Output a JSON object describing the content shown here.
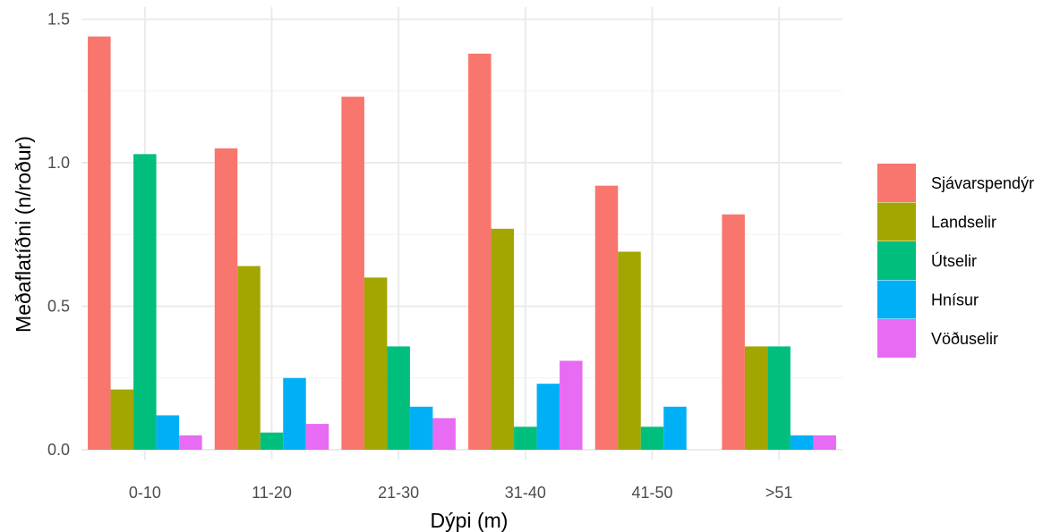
{
  "chart_data": {
    "type": "bar",
    "xlabel": "Dýpi (m)",
    "ylabel": "Meðaflatíðni (n/roður)",
    "ylim": [
      0,
      1.5
    ],
    "yticks": [
      "0.0",
      "0.5",
      "1.0",
      "1.5"
    ],
    "categories": [
      "0-10",
      "11-20",
      "21-30",
      "31-40",
      "41-50",
      ">51"
    ],
    "grid": true,
    "legend_position": "right",
    "series": [
      {
        "name": "Sjávarspendýr",
        "color": "#F8766D",
        "values": [
          1.44,
          1.05,
          1.23,
          1.38,
          0.92,
          0.82
        ]
      },
      {
        "name": "Landselir",
        "color": "#A3A500",
        "values": [
          0.21,
          0.64,
          0.6,
          0.77,
          0.69,
          0.36
        ]
      },
      {
        "name": "Útselir",
        "color": "#00BF7D",
        "values": [
          1.03,
          0.06,
          0.36,
          0.08,
          0.08,
          0.36
        ]
      },
      {
        "name": "Hnísur",
        "color": "#00B0F6",
        "values": [
          0.12,
          0.25,
          0.15,
          0.23,
          0.15,
          0.05
        ]
      },
      {
        "name": "Vöðuselir",
        "color": "#E76BF3",
        "values": [
          0.05,
          0.09,
          0.11,
          0.31,
          0,
          0.05
        ]
      }
    ]
  }
}
